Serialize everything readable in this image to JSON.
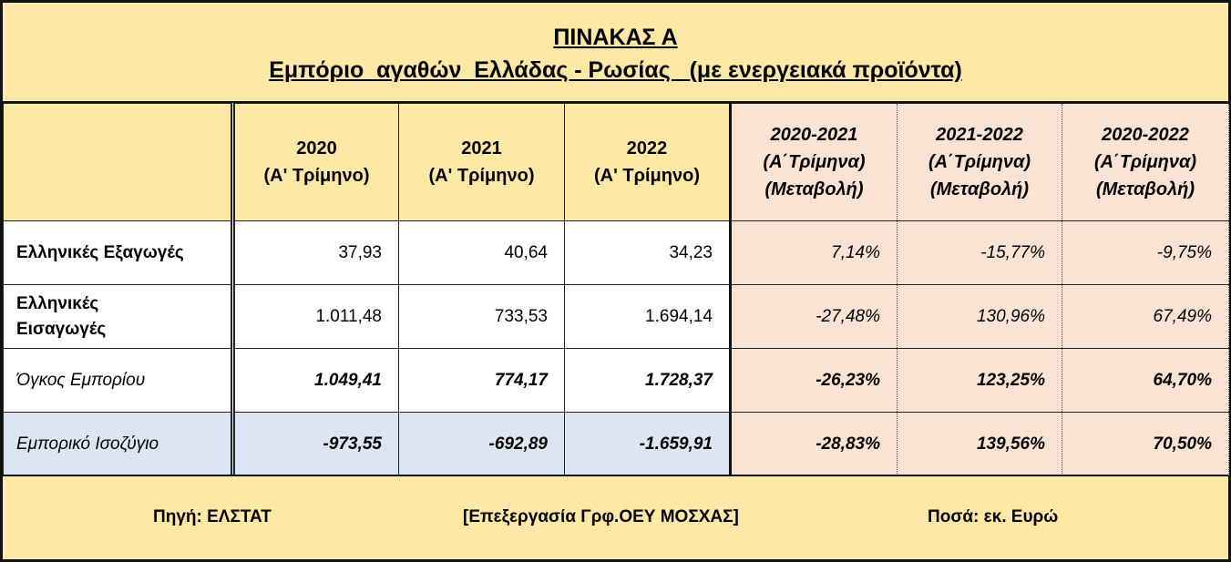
{
  "header": {
    "title": "ΠΙΝΑΚΑΣ Α",
    "subtitle": "Εμπόριο  αγαθών  Ελλάδας - Ρωσίας   (με ενεργειακά προϊόντα)"
  },
  "table": {
    "columns": [
      [
        "2020",
        "(Α' Τρίμηνο)"
      ],
      [
        "2021",
        "(Α' Τρίμηνο)"
      ],
      [
        "2022",
        "(Α' Τρίμηνο)"
      ],
      [
        "2020-2021",
        "(Α΄Τρίμηνα)",
        "(Μεταβολή)"
      ],
      [
        "2021-2022",
        "(Α΄Τρίμηνα)",
        "(Μεταβολή)"
      ],
      [
        "2020-2022",
        "(Α΄Τρίμηνα)",
        "(Μεταβολή)"
      ]
    ],
    "rows": [
      [
        "Ελληνικές Εξαγωγές",
        "37,93",
        "40,64",
        "34,23",
        "7,14%",
        "-15,77%",
        "-9,75%"
      ],
      [
        "Ελληνικές Εισαγωγές",
        "1.011,48",
        "733,53",
        "1.694,14",
        "-27,48%",
        "130,96%",
        "67,49%"
      ],
      [
        "Όγκος Εμπορίου",
        "1.049,41",
        "774,17",
        "1.728,37",
        "-26,23%",
        "123,25%",
        "64,70%"
      ],
      [
        "Εμπορικό Ισοζύγιο",
        "-973,55",
        "-692,89",
        "-1.659,91",
        "-28,83%",
        "139,56%",
        "70,50%"
      ]
    ]
  },
  "footer": {
    "source": "Πηγή: ΕΛΣΤΑΤ",
    "processing": "[Επεξεργασία Γρφ.ΟΕΥ ΜΟΣΧΑΣ]",
    "units": "Ποσά: εκ. Ευρώ"
  }
}
